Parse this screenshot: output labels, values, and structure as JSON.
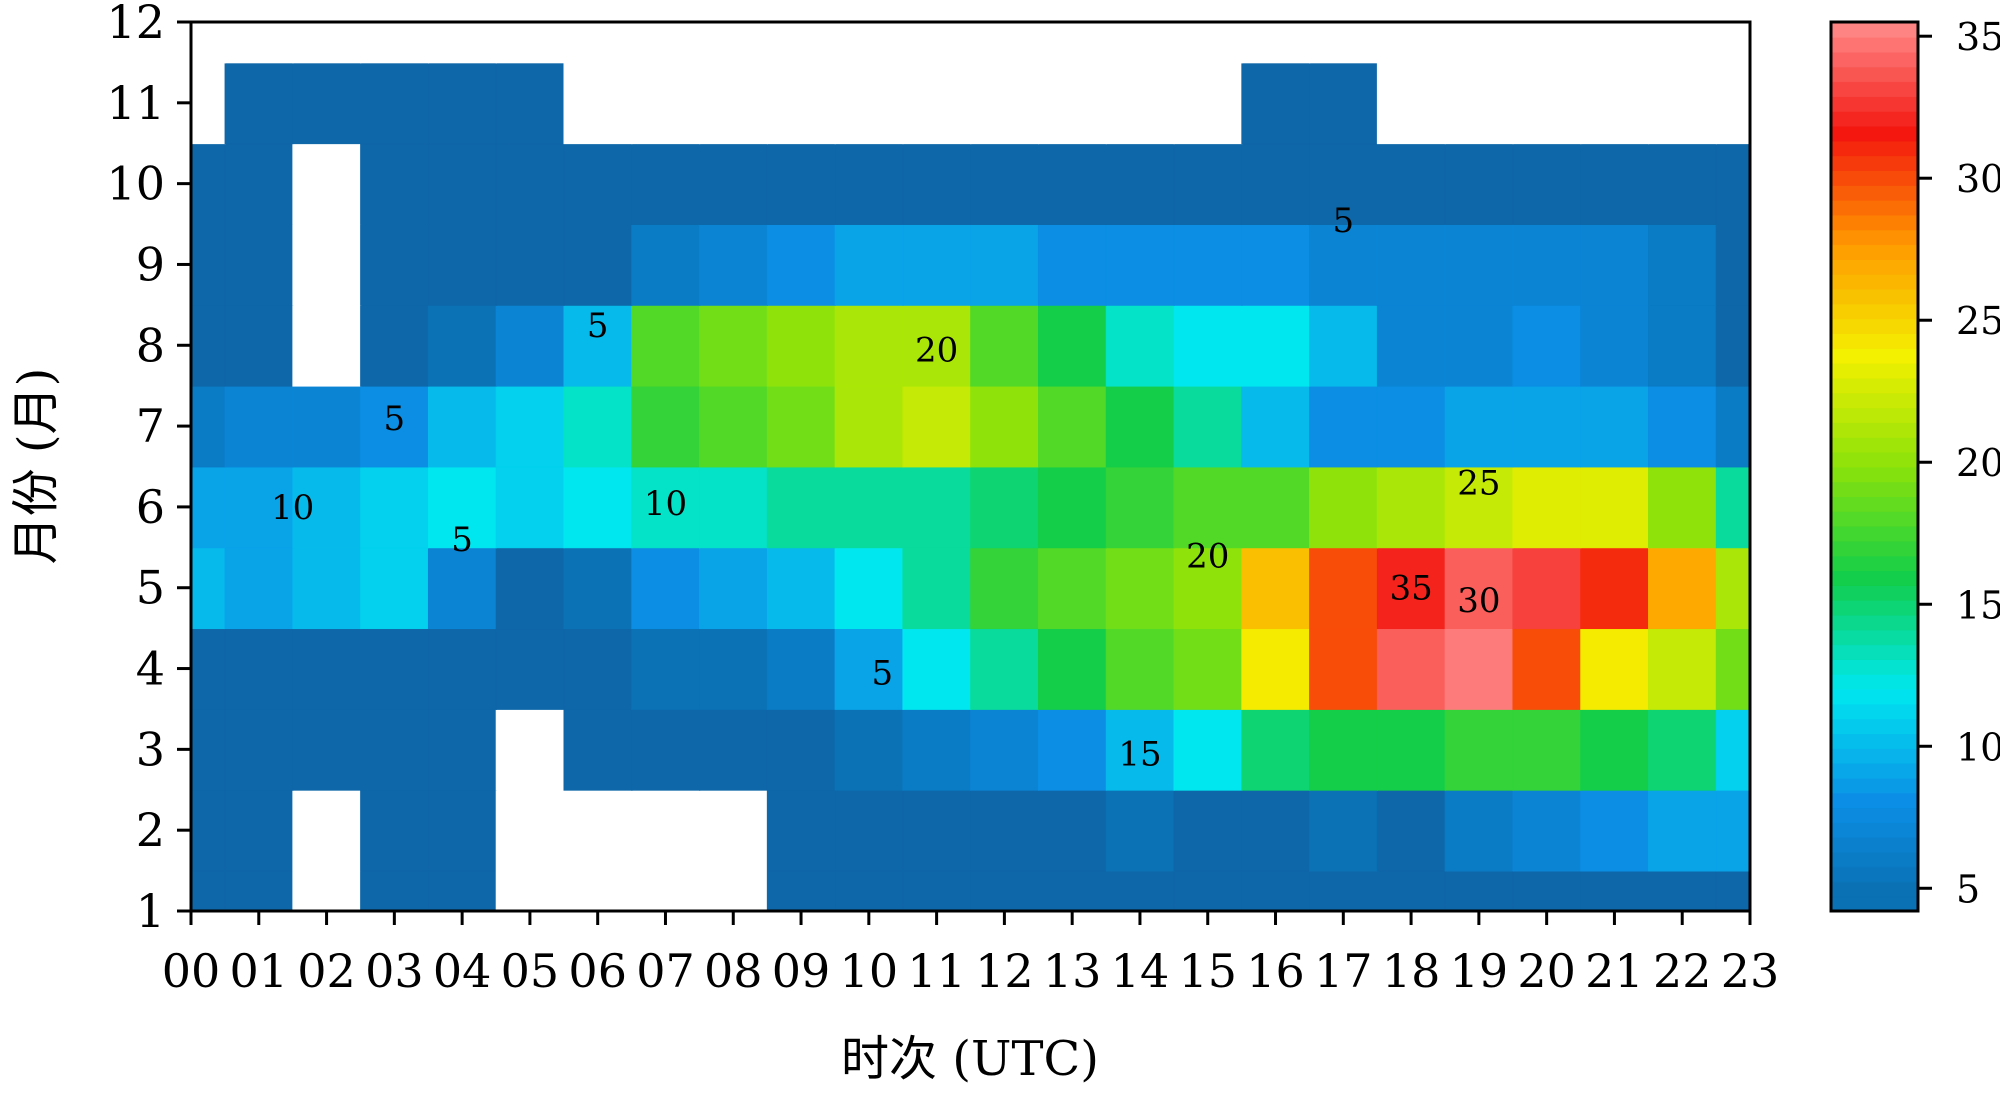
{
  "chart_data": {
    "type": "heatmap",
    "xlabel": "时次 (UTC)",
    "ylabel": "月份 (月)",
    "x_categories": [
      "00",
      "01",
      "02",
      "03",
      "04",
      "05",
      "06",
      "07",
      "08",
      "09",
      "10",
      "11",
      "12",
      "13",
      "14",
      "15",
      "16",
      "17",
      "18",
      "19",
      "20",
      "21",
      "22",
      "23"
    ],
    "y_ticks": [
      "1",
      "2",
      "3",
      "4",
      "5",
      "6",
      "7",
      "8",
      "9",
      "10",
      "11",
      "12"
    ],
    "ylim": [
      1,
      12
    ],
    "colorbar": {
      "ticks": [
        "5",
        "10",
        "15",
        "20",
        "25",
        "30",
        "35"
      ],
      "range": [
        4.2,
        35.5
      ],
      "colors": [
        "#0a6aa8",
        "#0b8fe6",
        "#00e8f0",
        "#12ce4a",
        "#8be20a",
        "#f3f000",
        "#ff9a00",
        "#f3170f",
        "#ff8b8b"
      ]
    },
    "below_threshold_color": "#0e67a8",
    "masked_color": "#ffffff",
    "values": [
      [
        2,
        1,
        0,
        1,
        1,
        0,
        0,
        0,
        0,
        2,
        2,
        2,
        2,
        2,
        2,
        3,
        2,
        2,
        3,
        3,
        3,
        3,
        3,
        2
      ],
      [
        2,
        1,
        0,
        1,
        1,
        0,
        0,
        0,
        0,
        2,
        2,
        3,
        3,
        4,
        5,
        4,
        4,
        5,
        4,
        6,
        7,
        8,
        9,
        9
      ],
      [
        2,
        3,
        2,
        3,
        2,
        0,
        1,
        2,
        2,
        3,
        5,
        6,
        7,
        8,
        10,
        12,
        15,
        16,
        16,
        17,
        17,
        16,
        15,
        11
      ],
      [
        3,
        3,
        2,
        3,
        4,
        1,
        3,
        5,
        5,
        6,
        9,
        12,
        14,
        16,
        18,
        19,
        24,
        30,
        34,
        35,
        30,
        24,
        22,
        19
      ],
      [
        10,
        9,
        10,
        11,
        7,
        2,
        5,
        8,
        9,
        10,
        12,
        14,
        17,
        18,
        19,
        20,
        26,
        30,
        32,
        34,
        33,
        31,
        27,
        21
      ],
      [
        9,
        9,
        10,
        11,
        12,
        11,
        12,
        13,
        13,
        14,
        14,
        14,
        15,
        16,
        17,
        18,
        18,
        20,
        21,
        22,
        23,
        23,
        20,
        14
      ],
      [
        6,
        7,
        7,
        8,
        10,
        11,
        13,
        17,
        18,
        19,
        21,
        22,
        20,
        18,
        16,
        14,
        10,
        8,
        8,
        9,
        9,
        9,
        8,
        6
      ],
      [
        2,
        2,
        0,
        3,
        5,
        7,
        10,
        18,
        19,
        20,
        21,
        21,
        18,
        16,
        13,
        12,
        12,
        10,
        7,
        7,
        8,
        7,
        6,
        4
      ],
      [
        2,
        2,
        0,
        2,
        2,
        2,
        3,
        6,
        7,
        8,
        9,
        9,
        9,
        8,
        8,
        8,
        8,
        7,
        7,
        7,
        7,
        7,
        6,
        4
      ],
      [
        3,
        2,
        0,
        2,
        1,
        1,
        2,
        2,
        2,
        3,
        4,
        3,
        4,
        4,
        4,
        4,
        4,
        4,
        4,
        4,
        4,
        4,
        4,
        4
      ],
      [
        0,
        3,
        3,
        3,
        3,
        3,
        0,
        0,
        0,
        0,
        0,
        0,
        0,
        0,
        0,
        0,
        3,
        3,
        0,
        0,
        0,
        0,
        0,
        0
      ],
      [
        0,
        0,
        0,
        0,
        0,
        0,
        0,
        0,
        0,
        0,
        0,
        0,
        0,
        0,
        0,
        0,
        0,
        0,
        0,
        0,
        0,
        0,
        0,
        0
      ]
    ],
    "contour_labels": [
      {
        "text": "5",
        "x": 17,
        "y": 9.55
      },
      {
        "text": "5",
        "x": 6,
        "y": 8.25
      },
      {
        "text": "5",
        "x": 3,
        "y": 7.1
      },
      {
        "text": "5",
        "x": 4,
        "y": 5.6
      },
      {
        "text": "5",
        "x": 10.2,
        "y": 3.95
      },
      {
        "text": "10",
        "x": 1.5,
        "y": 6.0
      },
      {
        "text": "10",
        "x": 7,
        "y": 6.05
      },
      {
        "text": "20",
        "x": 11,
        "y": 7.95
      },
      {
        "text": "20",
        "x": 15,
        "y": 5.4
      },
      {
        "text": "15",
        "x": 14,
        "y": 2.95
      },
      {
        "text": "25",
        "x": 19,
        "y": 6.3
      },
      {
        "text": "35",
        "x": 18,
        "y": 5.0
      },
      {
        "text": "30",
        "x": 19,
        "y": 4.85
      }
    ]
  }
}
